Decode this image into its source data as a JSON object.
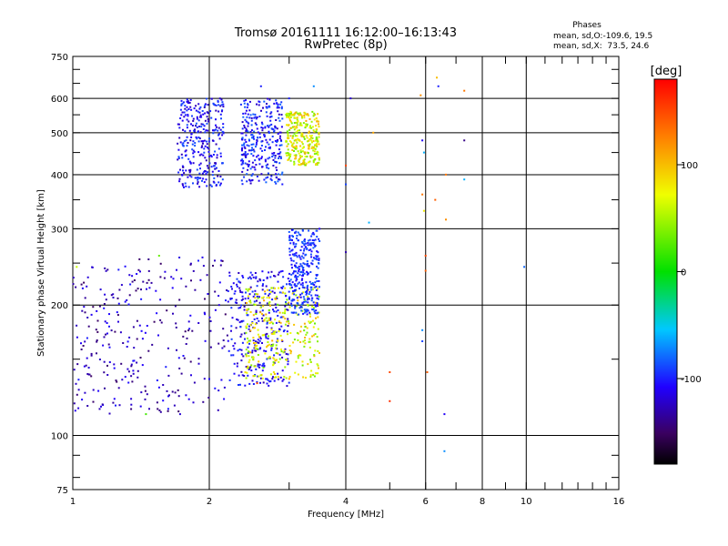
{
  "chart_data": {
    "type": "scatter",
    "title": "Tromsø 20161111 16:12:00–16:13:43",
    "subtitle": "RwPretec (8p)",
    "xlabel": "Frequency [MHz]",
    "ylabel": "Stationary phase Virtual Height [km]",
    "x_scale": "log",
    "y_scale": "log",
    "xlim": [
      1,
      16
    ],
    "ylim": [
      75,
      750
    ],
    "x_ticks": [
      1,
      2,
      4,
      6,
      8,
      10,
      16
    ],
    "y_ticks": [
      75,
      100,
      200,
      300,
      400,
      500,
      600,
      750
    ],
    "x_gridlines": [
      2,
      4,
      6,
      8,
      10
    ],
    "y_gridlines": [
      100,
      200,
      300,
      400,
      500,
      600
    ],
    "grid": true,
    "colorbar": {
      "label": "[deg]",
      "range": [
        -180,
        180
      ],
      "ticks": [
        100,
        0,
        -100
      ],
      "tick_labels": [
        "100",
        "0",
        "-100"
      ]
    },
    "phase_stats": {
      "heading": "Phases",
      "line_o": "mean, sd,O:-109.6, 19.5",
      "line_x": "mean, sd,X:  73.5, 24.6"
    },
    "clusters": [
      {
        "name_hint": "F-region O trace",
        "f": [
          1.7,
          2.15
        ],
        "h": [
          370,
          600
        ],
        "phase": [
          -130,
          -85
        ]
      },
      {
        "name_hint": "F-region X trace",
        "f": [
          2.35,
          2.9
        ],
        "h": [
          380,
          600
        ],
        "phase": [
          -125,
          -80
        ]
      },
      {
        "name_hint": "F-region X tail",
        "f": [
          2.95,
          3.5
        ],
        "h": [
          420,
          560
        ],
        "phase": [
          30,
          110
        ]
      },
      {
        "name_hint": "low region O",
        "f": [
          1.0,
          2.2
        ],
        "h": [
          112,
          260
        ],
        "phase": [
          -150,
          -100
        ]
      },
      {
        "name_hint": "low region mixed",
        "f": [
          2.2,
          3.0
        ],
        "h": [
          130,
          240
        ],
        "phase": [
          -130,
          -90
        ]
      },
      {
        "name_hint": "low region X",
        "f": [
          2.4,
          3.5
        ],
        "h": [
          135,
          220
        ],
        "phase": [
          30,
          110
        ]
      },
      {
        "name_hint": "upper trace",
        "f": [
          3.0,
          3.5
        ],
        "h": [
          190,
          300
        ],
        "phase": [
          -110,
          -80
        ]
      }
    ],
    "sparse_points": [
      {
        "f": 4.1,
        "h": 600,
        "phase": -120
      },
      {
        "f": 4.0,
        "h": 420,
        "phase": 150
      },
      {
        "f": 4.0,
        "h": 380,
        "phase": -90
      },
      {
        "f": 4.5,
        "h": 310,
        "phase": -60
      },
      {
        "f": 4.0,
        "h": 265,
        "phase": -130
      },
      {
        "f": 4.6,
        "h": 500,
        "phase": 110
      },
      {
        "f": 5.0,
        "h": 140,
        "phase": 150
      },
      {
        "f": 5.0,
        "h": 120,
        "phase": 160
      },
      {
        "f": 5.85,
        "h": 610,
        "phase": 120
      },
      {
        "f": 5.9,
        "h": 480,
        "phase": -110
      },
      {
        "f": 5.95,
        "h": 450,
        "phase": -60
      },
      {
        "f": 5.9,
        "h": 360,
        "phase": 130
      },
      {
        "f": 5.95,
        "h": 330,
        "phase": 80
      },
      {
        "f": 6.0,
        "h": 260,
        "phase": 150
      },
      {
        "f": 6.0,
        "h": 240,
        "phase": 140
      },
      {
        "f": 5.9,
        "h": 175,
        "phase": -70
      },
      {
        "f": 5.9,
        "h": 165,
        "phase": -90
      },
      {
        "f": 6.05,
        "h": 140,
        "phase": 140
      },
      {
        "f": 6.35,
        "h": 670,
        "phase": 100
      },
      {
        "f": 6.4,
        "h": 640,
        "phase": -100
      },
      {
        "f": 6.3,
        "h": 350,
        "phase": 140
      },
      {
        "f": 6.65,
        "h": 400,
        "phase": 130
      },
      {
        "f": 6.65,
        "h": 315,
        "phase": 120
      },
      {
        "f": 6.6,
        "h": 112,
        "phase": -110
      },
      {
        "f": 6.6,
        "h": 92,
        "phase": -70
      },
      {
        "f": 7.3,
        "h": 625,
        "phase": 130
      },
      {
        "f": 7.3,
        "h": 480,
        "phase": -140
      },
      {
        "f": 7.3,
        "h": 390,
        "phase": -60
      },
      {
        "f": 9.9,
        "h": 245,
        "phase": -80
      },
      {
        "f": 3.5,
        "h": 300,
        "phase": -110
      },
      {
        "f": 3.4,
        "h": 640,
        "phase": -70
      },
      {
        "f": 3.0,
        "h": 600,
        "phase": -100
      },
      {
        "f": 2.6,
        "h": 640,
        "phase": -100
      },
      {
        "f": 1.02,
        "h": 245,
        "phase": 60
      },
      {
        "f": 1.55,
        "h": 260,
        "phase": 30
      },
      {
        "f": 1.45,
        "h": 112,
        "phase": 20
      },
      {
        "f": 2.55,
        "h": 132,
        "phase": 150
      }
    ]
  }
}
